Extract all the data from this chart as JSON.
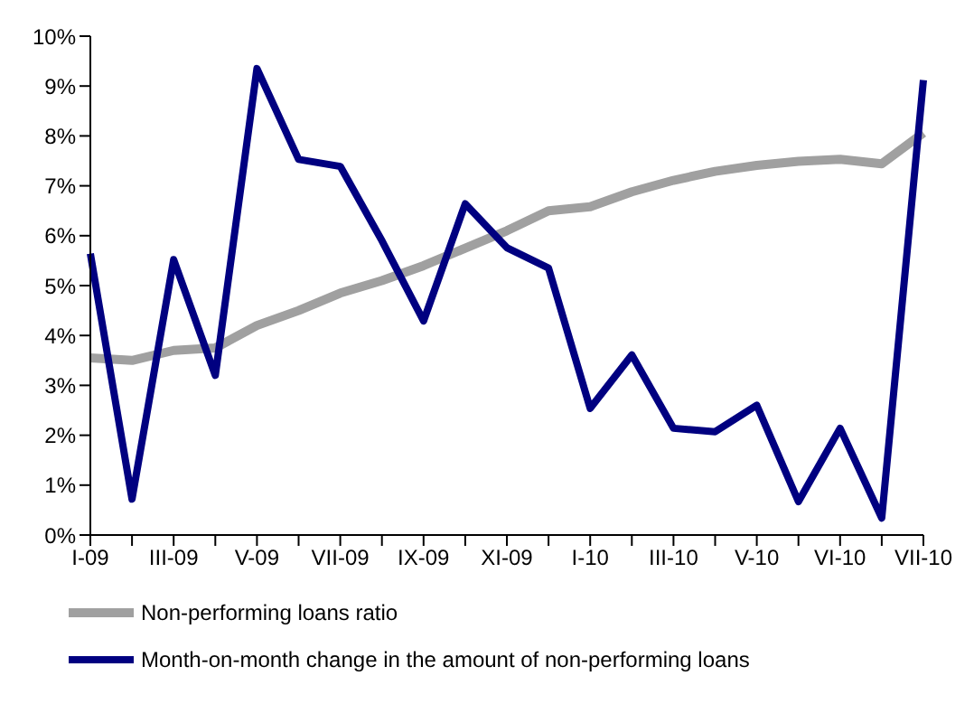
{
  "chart_data": {
    "type": "line",
    "categories": [
      "I-09",
      null,
      "III-09",
      null,
      "V-09",
      null,
      "VII-09",
      null,
      "IX-09",
      null,
      "XI-09",
      null,
      "I-10",
      null,
      "III-10",
      null,
      "V-10",
      null,
      "VI-10",
      null,
      "VII-10"
    ],
    "series": [
      {
        "name": "Non-performing loans ratio",
        "color": "#a0a0a0",
        "values": [
          3.55,
          3.5,
          3.7,
          3.75,
          4.2,
          4.5,
          4.85,
          5.1,
          5.4,
          5.75,
          6.1,
          6.5,
          6.58,
          6.88,
          7.11,
          7.29,
          7.41,
          7.49,
          7.53,
          7.44,
          8.06
        ]
      },
      {
        "name": "Month-on-month change in the amount of non-performing loans",
        "color": "#000080",
        "values": [
          5.64,
          0.72,
          5.52,
          3.2,
          9.35,
          7.53,
          7.39,
          5.9,
          4.29,
          6.64,
          5.76,
          5.35,
          2.54,
          3.61,
          2.14,
          2.07,
          2.6,
          0.67,
          2.14,
          0.34,
          9.12
        ]
      }
    ],
    "ylim": [
      0,
      10
    ],
    "yticks": [
      {
        "value": 0,
        "label": "0%"
      },
      {
        "value": 1,
        "label": "1%"
      },
      {
        "value": 2,
        "label": "2%"
      },
      {
        "value": 3,
        "label": "3%"
      },
      {
        "value": 4,
        "label": "4%"
      },
      {
        "value": 5,
        "label": "5%"
      },
      {
        "value": 6,
        "label": "6%"
      },
      {
        "value": 7,
        "label": "7%"
      },
      {
        "value": 8,
        "label": "8%"
      },
      {
        "value": 9,
        "label": "9%"
      },
      {
        "value": 10,
        "label": "10%"
      }
    ],
    "grid": false,
    "legend": "bottom",
    "marker": "none",
    "line_style": "solid"
  }
}
